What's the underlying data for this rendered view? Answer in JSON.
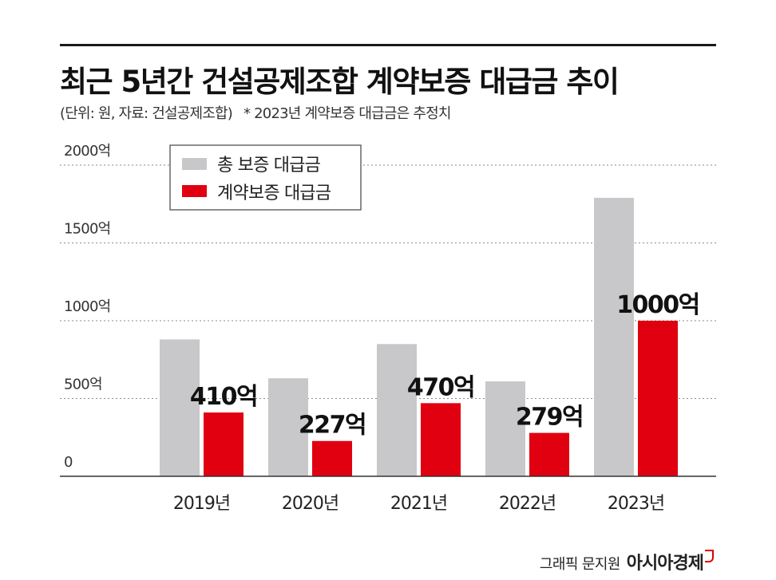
{
  "title": "최근 5년간 건설공제조합 계약보증 대급금 추이",
  "subtitle": "(단위: 원, 자료: 건설공제조합)",
  "note": "* 2023년 계약보증 대급금은 추정치",
  "credit": {
    "text": "그래픽 문지원",
    "brand": "아시아경제"
  },
  "colors": {
    "total": "#c8c8ca",
    "contract": "#e00010",
    "brand_mark": "#e00000"
  },
  "chart_data": {
    "type": "bar",
    "categories": [
      "2019년",
      "2020년",
      "2021년",
      "2022년",
      "2023년"
    ],
    "series": [
      {
        "name": "총 보증 대급금",
        "values": [
          880,
          630,
          850,
          610,
          1790
        ]
      },
      {
        "name": "계약보증 대급금",
        "values": [
          410,
          227,
          470,
          279,
          1000
        ]
      }
    ],
    "data_labels": [
      "410억",
      "227억",
      "470억",
      "279억",
      "1000억"
    ],
    "yticks": [
      {
        "value": 0,
        "label": "0"
      },
      {
        "value": 500,
        "label": "500억"
      },
      {
        "value": 1000,
        "label": "1000억"
      },
      {
        "value": 1500,
        "label": "1500억"
      },
      {
        "value": 2000,
        "label": "2000억"
      }
    ],
    "ylim": [
      0,
      2000
    ],
    "grid": true,
    "legend": "top-left",
    "title": "최근 5년간 건설공제조합 계약보증 대급금 추이"
  }
}
